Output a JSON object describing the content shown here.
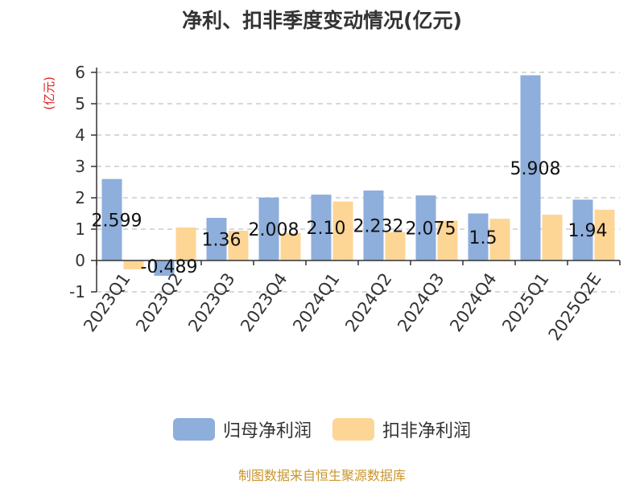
{
  "chart_data": {
    "type": "bar",
    "title": "净利、扣非季度变动情况(亿元)",
    "ylabel": "(亿元)",
    "ylim": [
      -1,
      6
    ],
    "yticks": [
      -1,
      0,
      1,
      2,
      3,
      4,
      5,
      6
    ],
    "grid": true,
    "legend_position": "bottom",
    "categories": [
      "2023Q1",
      "2023Q2",
      "2023Q3",
      "2023Q4",
      "2024Q1",
      "2024Q2",
      "2024Q3",
      "2024Q4",
      "2025Q1",
      "2025Q2E"
    ],
    "series": [
      {
        "name": "归母净利润",
        "color": "#8eaedc",
        "values": [
          2.599,
          -0.489,
          1.36,
          2.008,
          2.1,
          2.232,
          2.075,
          1.5,
          5.908,
          1.94
        ],
        "labels": [
          "2.599",
          "-0.489",
          "1.36",
          "2.008",
          "2.10",
          "2.232",
          "2.075",
          "1.5",
          "5.908",
          "1.94"
        ]
      },
      {
        "name": "扣非净利润",
        "color": "#fdd595",
        "values": [
          -0.28,
          1.05,
          0.95,
          0.88,
          1.88,
          0.9,
          1.27,
          1.33,
          1.46,
          1.62
        ]
      }
    ]
  },
  "source": "制图数据来自恒生聚源数据库"
}
